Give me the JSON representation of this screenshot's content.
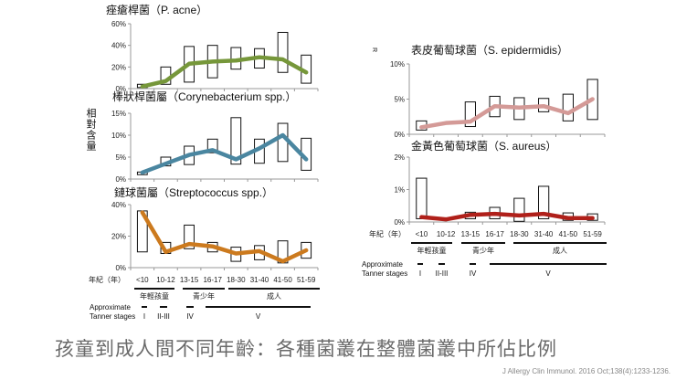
{
  "y_axis_label": "相對含量",
  "right_axis_label": "R",
  "x_axis_title": "年紀（年）",
  "age_groups": [
    "年輕孩童",
    "青少年",
    "成人"
  ],
  "tanner_label_1": "Approximate",
  "tanner_label_2": "Tanner stages",
  "tanner_stages": [
    "I",
    "II-III",
    "IV",
    "V"
  ],
  "caption": "孩童到成人間不同年齡：各種菌叢在整體菌叢中所佔比例",
  "citation": "J Allergy Clin Immunol. 2016 Oct;138(4):1233-1236.",
  "chart_data": [
    {
      "type": "line",
      "title": "痤瘡桿菌（P. acne）",
      "categories": [
        "<10",
        "10-12",
        "13-15",
        "16-17",
        "18-30",
        "31-40",
        "41-50",
        "51-59"
      ],
      "yticks": [
        "0%",
        "20%",
        "40%",
        "60%"
      ],
      "ylim": [
        0,
        60
      ],
      "unit": "%",
      "color": "#76973a",
      "values": [
        2,
        7,
        23,
        25,
        26,
        29,
        27,
        15
      ],
      "ranges": [
        [
          1,
          4
        ],
        [
          4,
          20
        ],
        [
          6,
          39
        ],
        [
          10,
          40
        ],
        [
          18,
          38
        ],
        [
          19,
          37
        ],
        [
          15,
          52
        ],
        [
          5,
          31
        ]
      ]
    },
    {
      "type": "line",
      "title": "棒狀桿菌屬（Corynebacterium spp.）",
      "categories": [
        "<10",
        "10-12",
        "13-15",
        "16-17",
        "18-30",
        "31-40",
        "41-50",
        "51-59"
      ],
      "yticks": [
        "0%",
        "5%",
        "10%",
        "15%"
      ],
      "ylim": [
        0,
        15
      ],
      "unit": "%",
      "color": "#4a86a0",
      "values": [
        1.5,
        3.5,
        5.5,
        6.6,
        4.5,
        7,
        10,
        4.5
      ],
      "ranges": [
        [
          1,
          1.6
        ],
        [
          3,
          5
        ],
        [
          3.3,
          7.5
        ],
        [
          6,
          9.1
        ],
        [
          3.4,
          14
        ],
        [
          3.6,
          9.1
        ],
        [
          4,
          12.7
        ],
        [
          2,
          9.3
        ]
      ]
    },
    {
      "type": "line",
      "title": "鏈球菌屬（Streptococcus spp.）",
      "categories": [
        "<10",
        "10-12",
        "13-15",
        "16-17",
        "18-30",
        "31-40",
        "41-50",
        "51-59"
      ],
      "yticks": [
        "0%",
        "20%",
        "40%"
      ],
      "ylim": [
        0,
        40
      ],
      "unit": "%",
      "color": "#cc7a1e",
      "values": [
        35,
        10,
        15,
        13.5,
        9,
        10.5,
        4,
        11
      ],
      "ranges": [
        [
          10,
          36
        ],
        [
          9,
          16
        ],
        [
          12,
          27
        ],
        [
          10,
          16
        ],
        [
          4,
          13
        ],
        [
          5,
          14
        ],
        [
          3,
          17
        ],
        [
          6,
          16
        ]
      ]
    },
    {
      "type": "line",
      "title": "表皮葡萄球菌（S. epidermidis）",
      "categories": [
        "<10",
        "10-12",
        "13-15",
        "16-17",
        "18-30",
        "31-40",
        "41-50",
        "51-59"
      ],
      "yticks": [
        "0%",
        "5%",
        "10%"
      ],
      "ylim": [
        0,
        10
      ],
      "unit": "%",
      "color": "#d49a97",
      "values": [
        1,
        1.6,
        1.8,
        4,
        3.8,
        4,
        3,
        5
      ],
      "ranges": [
        [
          0.6,
          1.9
        ],
        null,
        [
          1.1,
          4.6
        ],
        [
          2.5,
          5.4
        ],
        [
          2.1,
          5.2
        ],
        [
          3.2,
          5.1
        ],
        [
          1.9,
          5.7
        ],
        [
          2.1,
          7.8
        ]
      ]
    },
    {
      "type": "line",
      "title": "金黃色葡萄球菌（S. aureus）",
      "categories": [
        "<10",
        "10-12",
        "13-15",
        "16-17",
        "18-30",
        "31-40",
        "41-50",
        "51-59"
      ],
      "yticks": [
        "0%",
        "1%",
        "2%"
      ],
      "ylim": [
        0,
        2
      ],
      "unit": "%",
      "color": "#b0201a",
      "values": [
        0.15,
        0.08,
        0.22,
        0.25,
        0.2,
        0.25,
        0.12,
        0.12
      ],
      "ranges": [
        [
          0.1,
          1.35
        ],
        null,
        [
          0.1,
          0.3
        ],
        [
          0.1,
          0.45
        ],
        [
          0.02,
          0.73
        ],
        [
          0.1,
          1.1
        ],
        [
          0.05,
          0.28
        ],
        [
          0.05,
          0.25
        ]
      ]
    }
  ]
}
